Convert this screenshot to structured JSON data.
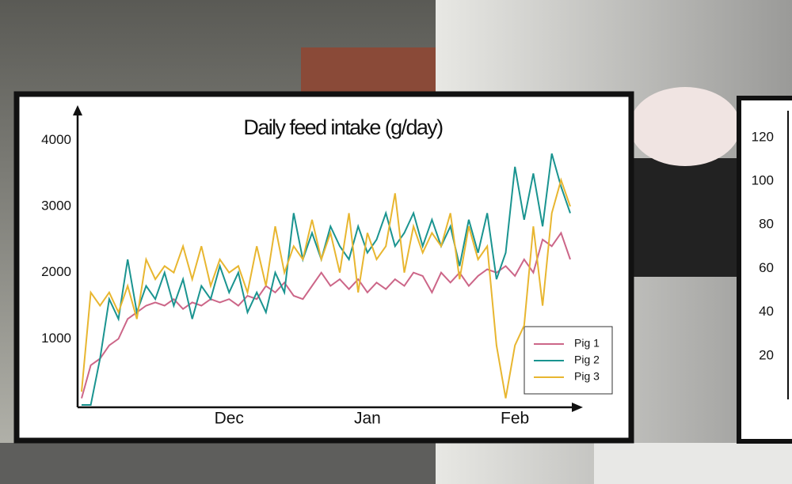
{
  "chart_data": [
    {
      "type": "line",
      "title": "Daily feed intake (g/day)",
      "categories": [
        null,
        null,
        null,
        null,
        null,
        null,
        null,
        null,
        null,
        null,
        null,
        null,
        null,
        null,
        null,
        null,
        "Dec",
        null,
        null,
        null,
        null,
        null,
        null,
        null,
        null,
        null,
        null,
        null,
        null,
        null,
        null,
        "Jan",
        null,
        null,
        null,
        null,
        null,
        null,
        null,
        null,
        null,
        null,
        null,
        null,
        null,
        null,
        null,
        "Feb",
        null,
        null,
        null,
        null,
        null,
        null
      ],
      "series": [
        {
          "name": "Pig 1",
          "color": "#cc6688",
          "values": [
            100,
            600,
            700,
            900,
            1000,
            1300,
            1400,
            1500,
            1550,
            1500,
            1600,
            1450,
            1550,
            1500,
            1600,
            1550,
            1600,
            1500,
            1650,
            1600,
            1800,
            1700,
            1850,
            1650,
            1600,
            1800,
            2000,
            1800,
            1900,
            1750,
            1900,
            1700,
            1850,
            1750,
            1900,
            1800,
            2000,
            1950,
            1700,
            2000,
            1850,
            2000,
            1800,
            1950,
            2050,
            2000,
            2100,
            1950,
            2200,
            2000,
            2500,
            2400,
            2600,
            2200
          ]
        },
        {
          "name": "Pig 2",
          "color": "#1a9490",
          "values": [
            0,
            0,
            700,
            1600,
            1300,
            2200,
            1400,
            1800,
            1600,
            2000,
            1500,
            1900,
            1300,
            1800,
            1600,
            2100,
            1700,
            2000,
            1400,
            1700,
            1400,
            2000,
            1700,
            2900,
            2200,
            2600,
            2200,
            2700,
            2400,
            2200,
            2700,
            2300,
            2500,
            2900,
            2400,
            2600,
            2900,
            2400,
            2800,
            2400,
            2700,
            2100,
            2800,
            2300,
            2900,
            1900,
            2300,
            3600,
            2800,
            3500,
            2700,
            3800,
            3300,
            2900
          ]
        },
        {
          "name": "Pig 3",
          "color": "#e8b630",
          "values": [
            200,
            1700,
            1500,
            1700,
            1400,
            1800,
            1300,
            2200,
            1900,
            2100,
            2000,
            2400,
            1900,
            2400,
            1800,
            2200,
            2000,
            2100,
            1700,
            2400,
            1800,
            2700,
            2000,
            2400,
            2200,
            2800,
            2200,
            2600,
            2000,
            2900,
            1700,
            2600,
            2200,
            2400,
            3200,
            2000,
            2700,
            2300,
            2600,
            2400,
            2900,
            1900,
            2700,
            2200,
            2400,
            900,
            100,
            900,
            1200,
            2700,
            1500,
            2900,
            3400,
            3000
          ]
        }
      ],
      "ylim": [
        0,
        4400
      ],
      "yticks": [
        1000,
        2000,
        3000,
        4000
      ],
      "legend": "lower right"
    },
    {
      "type": "line",
      "ylim": [
        0,
        125
      ],
      "yticks": [
        20,
        40,
        60,
        80,
        100,
        120
      ]
    }
  ]
}
